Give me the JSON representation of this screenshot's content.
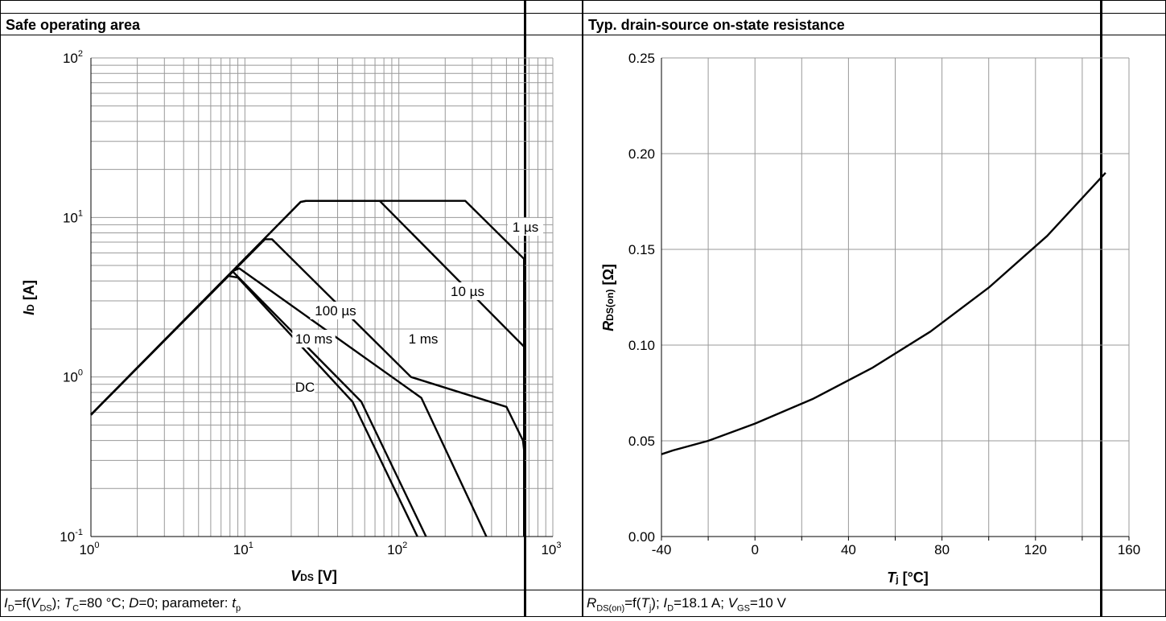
{
  "left": {
    "title": "Safe operating area",
    "footer": "ID=f(VDS); TC=80 °C; D=0; parameter: tp"
  },
  "right": {
    "title": "Typ. drain-source on-state resistance",
    "footer": "RDS(on)=f(Tj); ID=18.1 A; VGS=10 V"
  },
  "chart_data": [
    {
      "type": "line",
      "title": "Safe operating area",
      "xlabel": "VDS [V]",
      "ylabel": "ID [A]",
      "xscale": "log",
      "yscale": "log",
      "xlim": [
        1,
        1000
      ],
      "ylim": [
        0.1,
        100
      ],
      "xticks": [
        "10^0",
        "10^1",
        "10^2",
        "10^3"
      ],
      "yticks": [
        "10^-1",
        "10^0",
        "10^1",
        "10^2"
      ],
      "grid": true,
      "series": [
        {
          "name": "1 µs",
          "x": [
            1,
            23,
            25,
            270,
            650,
            650
          ],
          "y": [
            0.58,
            12.5,
            12.7,
            12.7,
            5.5,
            0.1
          ]
        },
        {
          "name": "10 µs",
          "x": [
            1,
            23,
            25,
            75,
            650
          ],
          "y": [
            0.58,
            12.5,
            12.7,
            12.7,
            1.55
          ]
        },
        {
          "name": "100 µs",
          "x": [
            1,
            13.5,
            15,
            120,
            500,
            640,
            650
          ],
          "y": [
            0.58,
            7.3,
            7.3,
            1.0,
            0.65,
            0.4,
            0.35
          ]
        },
        {
          "name": "1 ms",
          "x": [
            1,
            8.3,
            9.2,
            140,
            370
          ],
          "y": [
            0.58,
            4.6,
            4.8,
            0.74,
            0.1
          ]
        },
        {
          "name": "10 ms",
          "x": [
            1,
            8.3,
            57,
            150
          ],
          "y": [
            0.58,
            4.6,
            0.7,
            0.1
          ]
        },
        {
          "name": "DC",
          "x": [
            1,
            7.8,
            9,
            50,
            132
          ],
          "y": [
            0.58,
            4.3,
            4.2,
            0.7,
            0.1
          ]
        }
      ],
      "labels": [
        "1 µs",
        "10 µs",
        "100 µs",
        "1 ms",
        "10 ms",
        "DC"
      ]
    },
    {
      "type": "line",
      "title": "Typ. drain-source on-state resistance",
      "xlabel": "Tj [°C]",
      "ylabel": "RDS(on) [Ω]",
      "xlim": [
        -40,
        160
      ],
      "ylim": [
        0,
        0.25
      ],
      "xticks": [
        "-40",
        "0",
        "40",
        "80",
        "120",
        "160"
      ],
      "yticks": [
        "0.00",
        "0.05",
        "0.10",
        "0.15",
        "0.20",
        "0.25"
      ],
      "grid": true,
      "series": [
        {
          "x": [
            -40,
            -35,
            -20,
            0,
            25,
            50,
            75,
            100,
            125,
            150
          ],
          "y": [
            0.043,
            0.045,
            0.05,
            0.059,
            0.072,
            0.088,
            0.107,
            0.13,
            0.157,
            0.19
          ]
        }
      ]
    }
  ]
}
